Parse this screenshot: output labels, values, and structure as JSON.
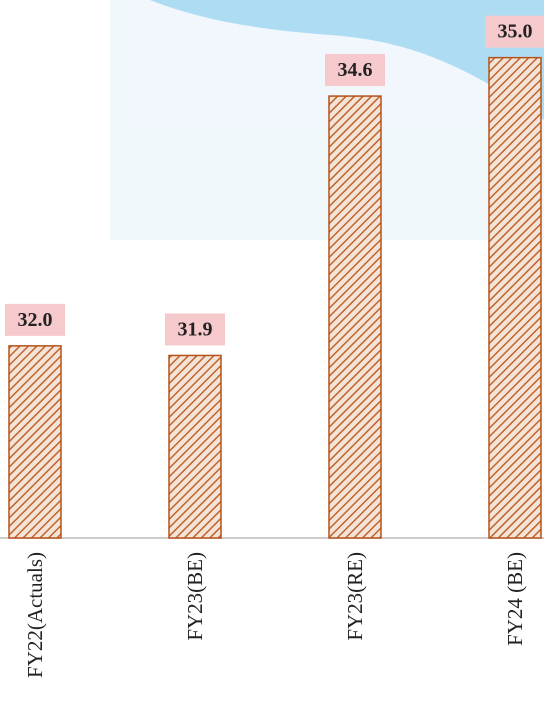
{
  "chart_data": {
    "type": "bar",
    "categories": [
      "FY22(Actuals)",
      "FY23(BE)",
      "FY23(RE)",
      "FY24 (BE)"
    ],
    "values": [
      32.0,
      31.9,
      34.6,
      35.0
    ],
    "value_labels": [
      "32.0",
      "31.9",
      "34.6",
      "35.0"
    ],
    "color": "#b5521b",
    "ylim": [
      30,
      35.6
    ]
  }
}
